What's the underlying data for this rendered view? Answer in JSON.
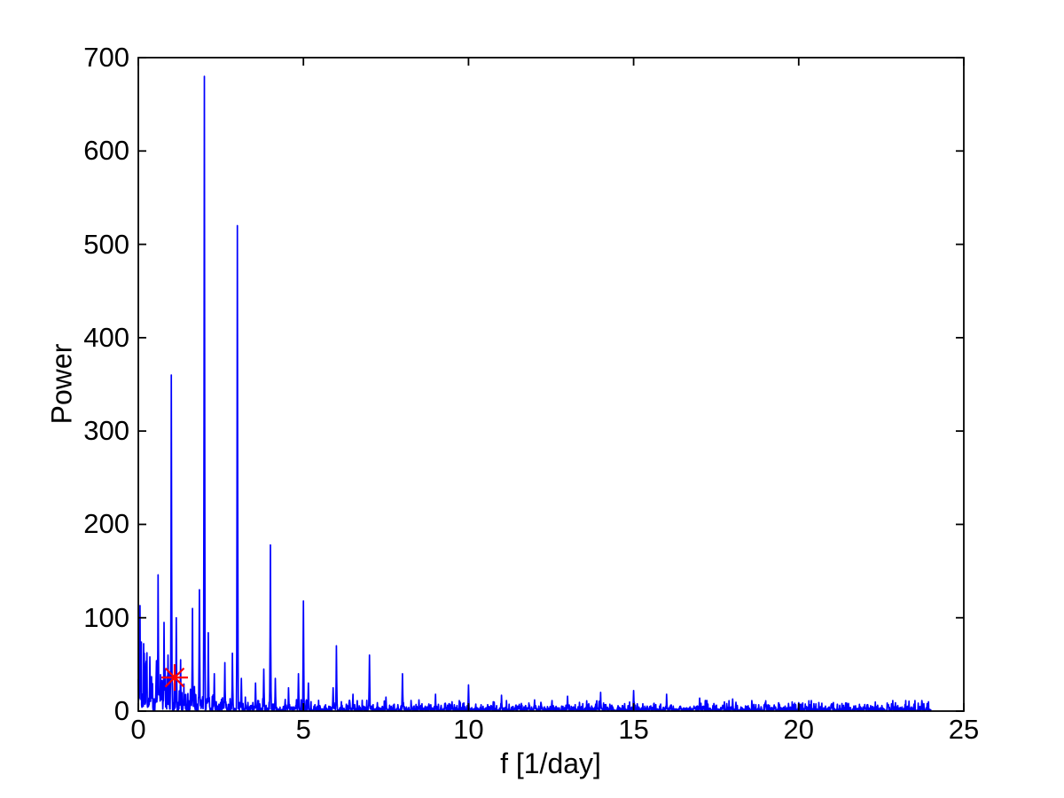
{
  "figure": {
    "background_color": "#ffffff",
    "axes_color": "#000000",
    "xlabel": "f [1/day]",
    "ylabel": "Power",
    "x_tick_labels": [
      "0",
      "5",
      "10",
      "15",
      "20",
      "25"
    ],
    "y_tick_labels": [
      "0",
      "100",
      "200",
      "300",
      "400",
      "500",
      "600",
      "700"
    ]
  },
  "chart_data": {
    "type": "line",
    "title": "",
    "xlabel": "f [1/day]",
    "ylabel": "Power",
    "xlim": [
      0,
      25
    ],
    "ylim": [
      0,
      700
    ],
    "xticks": [
      0,
      5,
      10,
      15,
      20,
      25
    ],
    "yticks": [
      0,
      100,
      200,
      300,
      400,
      500,
      600,
      700
    ],
    "grid": false,
    "legend": null,
    "line_color": "#0000ff",
    "f_start": 0,
    "f_end": 24,
    "f_step": 0.01,
    "peaks": [
      {
        "f": 1.0,
        "power": 360
      },
      {
        "f": 2.0,
        "power": 680
      },
      {
        "f": 3.0,
        "power": 520
      },
      {
        "f": 4.0,
        "power": 178
      },
      {
        "f": 5.0,
        "power": 118
      },
      {
        "f": 6.0,
        "power": 70
      },
      {
        "f": 7.0,
        "power": 60
      },
      {
        "f": 8.0,
        "power": 40
      },
      {
        "f": 9.0,
        "power": 18
      },
      {
        "f": 10.0,
        "power": 28
      },
      {
        "f": 11.0,
        "power": 17
      },
      {
        "f": 12.0,
        "power": 12
      },
      {
        "f": 13.0,
        "power": 16
      },
      {
        "f": 14.0,
        "power": 20
      },
      {
        "f": 15.0,
        "power": 22
      },
      {
        "f": 16.0,
        "power": 18
      },
      {
        "f": 17.0,
        "power": 14
      },
      {
        "f": 18.0,
        "power": 13
      },
      {
        "f": 19.0,
        "power": 11
      },
      {
        "f": 20.0,
        "power": 9
      },
      {
        "f": 21.0,
        "power": 8
      },
      {
        "f": 22.0,
        "power": 7
      },
      {
        "f": 23.0,
        "power": 6
      }
    ],
    "secondary_spikes": [
      {
        "f": 0.05,
        "power": 113
      },
      {
        "f": 0.18,
        "power": 62
      },
      {
        "f": 0.35,
        "power": 58
      },
      {
        "f": 0.6,
        "power": 146
      },
      {
        "f": 0.78,
        "power": 95
      },
      {
        "f": 0.9,
        "power": 60
      },
      {
        "f": 1.15,
        "power": 100
      },
      {
        "f": 1.28,
        "power": 55
      },
      {
        "f": 1.64,
        "power": 110
      },
      {
        "f": 1.85,
        "power": 130
      },
      {
        "f": 2.12,
        "power": 84
      },
      {
        "f": 2.3,
        "power": 40
      },
      {
        "f": 2.62,
        "power": 52
      },
      {
        "f": 2.85,
        "power": 62
      },
      {
        "f": 3.12,
        "power": 35
      },
      {
        "f": 3.55,
        "power": 30
      },
      {
        "f": 3.8,
        "power": 45
      },
      {
        "f": 4.15,
        "power": 35
      },
      {
        "f": 4.55,
        "power": 25
      },
      {
        "f": 4.85,
        "power": 40
      },
      {
        "f": 5.15,
        "power": 30
      },
      {
        "f": 5.9,
        "power": 25
      },
      {
        "f": 6.5,
        "power": 18
      },
      {
        "f": 7.5,
        "power": 15
      },
      {
        "f": 8.5,
        "power": 12
      },
      {
        "f": 9.5,
        "power": 10
      }
    ],
    "noise_model": {
      "seed": 20,
      "base_mean": 2.6,
      "lowfreq_mean": 22,
      "lowfreq_scale": 1.1,
      "clamp_factor": 3.2
    },
    "marker": {
      "symbol": "asterisk",
      "color": "#ff0000",
      "f": 1.1,
      "power": 36
    }
  }
}
